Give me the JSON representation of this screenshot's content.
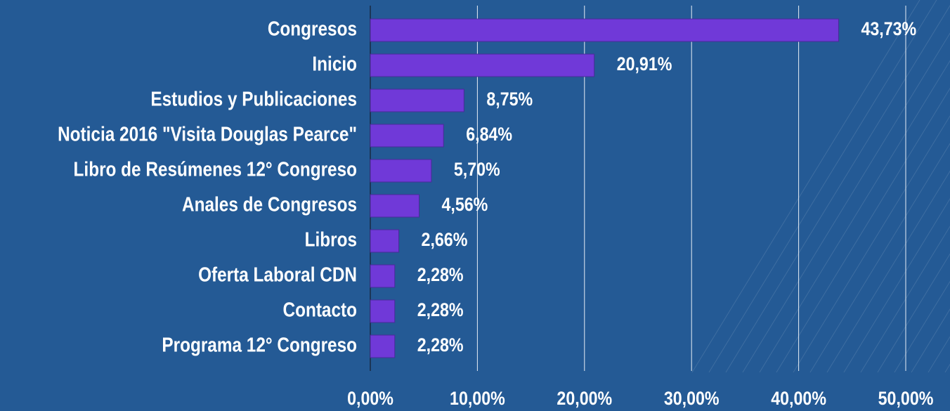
{
  "chart_data": {
    "type": "barh",
    "categories": [
      "Congresos",
      "Inicio",
      "Estudios y Publicaciones",
      "Noticia 2016 \"Visita Douglas Pearce\"",
      "Libro de Resúmenes 12° Congreso",
      "Anales de Congresos",
      "Libros",
      "Oferta Laboral CDN",
      "Contacto",
      "Programa 12° Congreso"
    ],
    "values": [
      43.73,
      20.91,
      8.75,
      6.84,
      5.7,
      4.56,
      2.66,
      2.28,
      2.28,
      2.28
    ],
    "value_labels": [
      "43,73%",
      "20,91%",
      "8,75%",
      "6,84%",
      "5,70%",
      "4,56%",
      "2,66%",
      "2,28%",
      "2,28%",
      "2,28%"
    ],
    "color": "#7039d8",
    "xlim": [
      0,
      50
    ],
    "xticks": [
      {
        "value": 0,
        "label": "0,00%"
      },
      {
        "value": 10,
        "label": "10,00%"
      },
      {
        "value": 20,
        "label": "20,00%"
      },
      {
        "value": 30,
        "label": "30,00%"
      },
      {
        "value": 40,
        "label": "40,00%"
      },
      {
        "value": 50,
        "label": "50,00%"
      }
    ],
    "grid": true
  }
}
